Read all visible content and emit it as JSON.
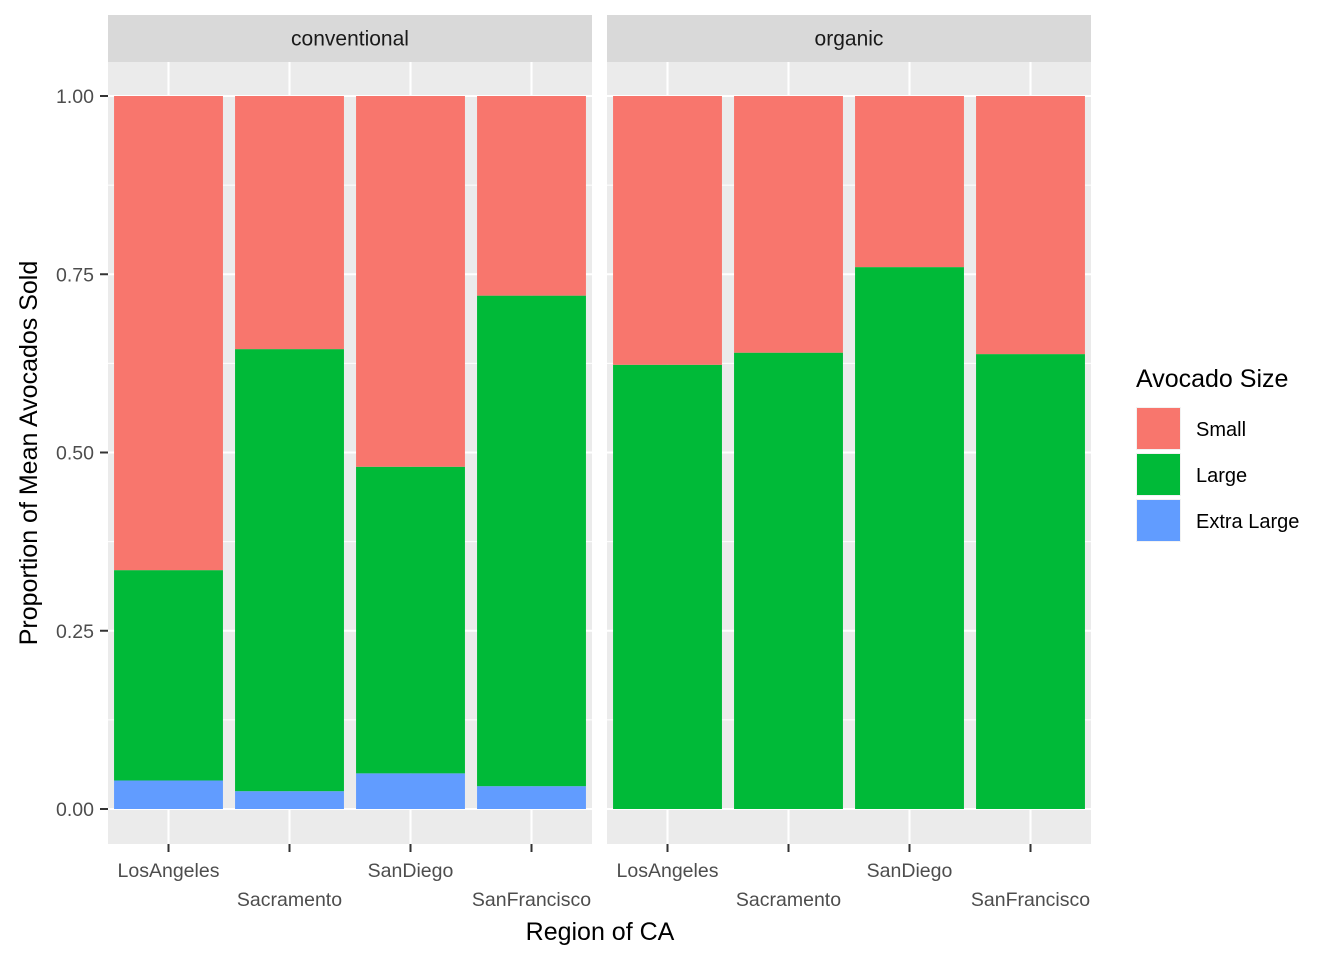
{
  "chart_data": {
    "type": "bar",
    "stacked": true,
    "xlabel": "Region of CA",
    "ylabel": "Proportion of Mean Avocados Sold",
    "ylim": [
      0,
      1.05
    ],
    "y_ticks": [
      0,
      0.25,
      0.5,
      0.75,
      1
    ],
    "y_tick_labels": [
      "0.00",
      "0.25",
      "0.50",
      "0.75",
      "1.00"
    ],
    "categories": [
      "LosAngeles",
      "Sacramento",
      "SanDiego",
      "SanFrancisco"
    ],
    "legend": {
      "title": "Avocado Size",
      "placement": "right",
      "entries": [
        {
          "name": "Small",
          "color": "#F8766D"
        },
        {
          "name": "Large",
          "color": "#00BA38"
        },
        {
          "name": "Extra Large",
          "color": "#619CFF"
        }
      ]
    },
    "panels": [
      {
        "facet": "conventional",
        "series": [
          {
            "name": "Small",
            "values": [
              0.665,
              0.355,
              0.52,
              0.28
            ]
          },
          {
            "name": "Large",
            "values": [
              0.295,
              0.62,
              0.43,
              0.688
            ]
          },
          {
            "name": "Extra Large",
            "values": [
              0.04,
              0.025,
              0.05,
              0.032
            ]
          }
        ]
      },
      {
        "facet": "organic",
        "series": [
          {
            "name": "Small",
            "values": [
              0.377,
              0.36,
              0.24,
              0.362
            ]
          },
          {
            "name": "Large",
            "values": [
              0.623,
              0.64,
              0.76,
              0.638
            ]
          },
          {
            "name": "Extra Large",
            "values": [
              0,
              0,
              0,
              0
            ]
          }
        ]
      }
    ]
  }
}
